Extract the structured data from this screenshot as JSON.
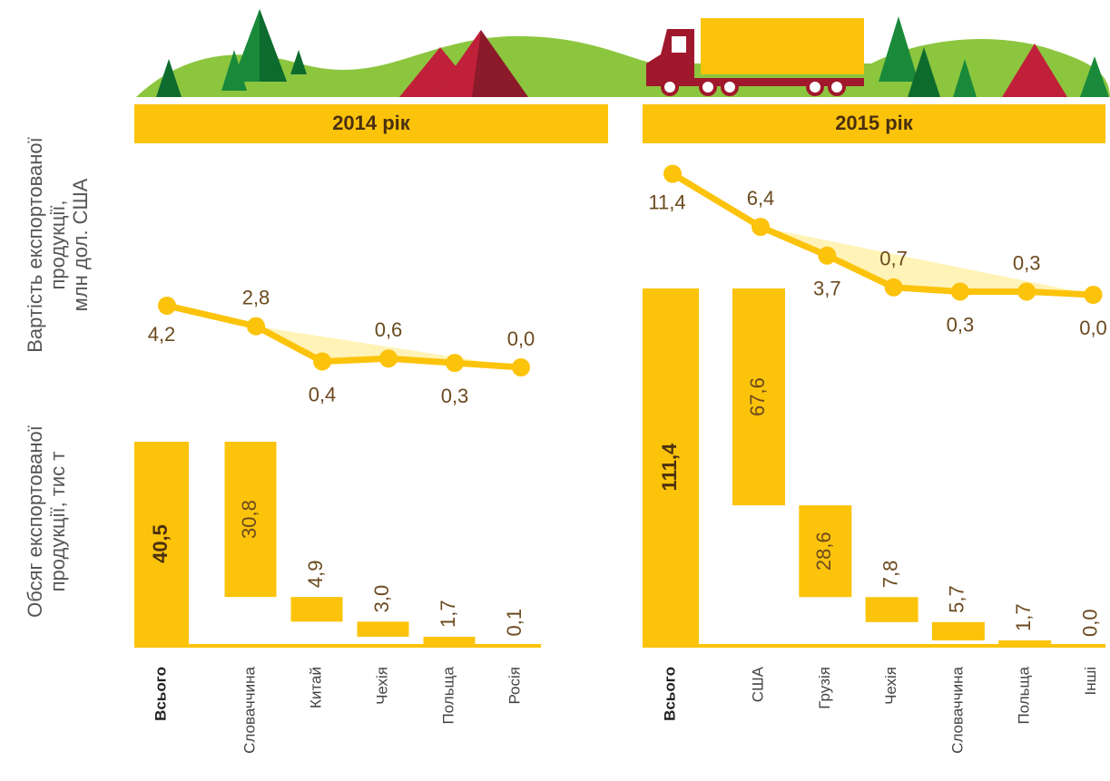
{
  "axis_labels": {
    "value": [
      "Вартість експортованої",
      "продукції,",
      "млн дол. США"
    ],
    "volume": [
      "Обсяг експортованої",
      "продукції, тис т"
    ]
  },
  "chart_data": [
    {
      "type": "waterfall",
      "title": "2014 рік",
      "categories": [
        "Всього",
        "Словаччина",
        "Китай",
        "Чехія",
        "Польща",
        "Росія"
      ],
      "values": [
        40.5,
        30.8,
        4.9,
        3.0,
        1.7,
        0.1
      ],
      "value_labels": [
        "40,5",
        "30,8",
        "4,9",
        "3,0",
        "1,7",
        "0,1"
      ],
      "line_values": [
        4.2,
        2.8,
        0.4,
        0.6,
        0.3,
        0.0
      ],
      "line_value_labels": [
        "4,2",
        "2,8",
        "0,4",
        "0,6",
        "0,3",
        "0,0"
      ],
      "bar_color": "#fcc30b",
      "line_color": "#fcc30b"
    },
    {
      "type": "waterfall",
      "title": "2015 рік",
      "categories": [
        "Всього",
        "США",
        "Грузія",
        "Чехія",
        "Словаччина",
        "Польща",
        "Інші"
      ],
      "values": [
        111.4,
        67.6,
        28.6,
        7.8,
        5.7,
        1.7,
        0.0
      ],
      "value_labels": [
        "111,4",
        "67,6",
        "28,6",
        "7,8",
        "5,7",
        "1,7",
        "0,0"
      ],
      "line_values": [
        11.4,
        6.4,
        3.7,
        0.7,
        0.3,
        0.3,
        0.0
      ],
      "line_value_labels": [
        "11,4",
        "6,4",
        "3,7",
        "0,7",
        "0,3",
        "0,3",
        "0,0"
      ],
      "bar_color": "#fcc30b",
      "line_color": "#fcc30b"
    }
  ]
}
